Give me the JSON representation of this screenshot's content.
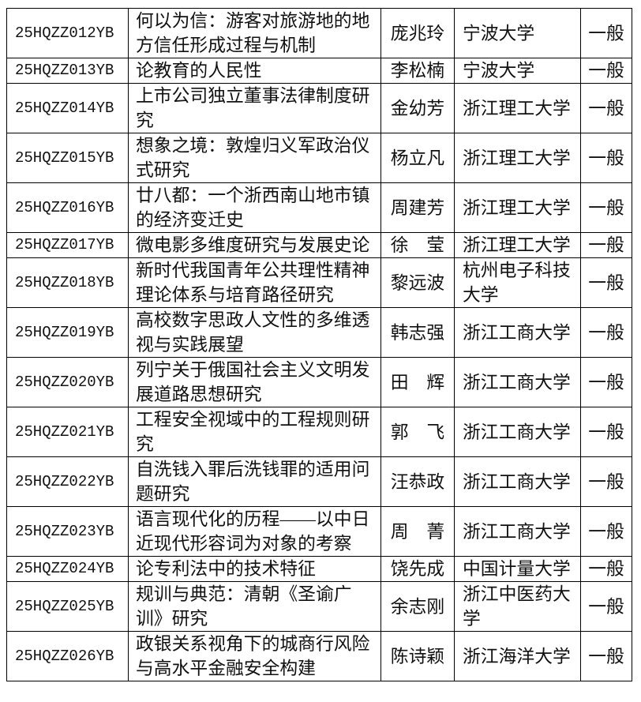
{
  "table": {
    "rows": [
      [
        "25HQZZ012YB",
        "何以为信：游客对旅游地的地方信任形成过程与机制",
        "庞兆玲",
        "宁波大学",
        "一般"
      ],
      [
        "25HQZZ013YB",
        "论教育的人民性",
        "李松楠",
        "宁波大学",
        "一般"
      ],
      [
        "25HQZZ014YB",
        "上市公司独立董事法律制度研究",
        "金幼芳",
        "浙江理工大学",
        "一般"
      ],
      [
        "25HQZZ015YB",
        "想象之境：敦煌归义军政治仪式研究",
        "杨立凡",
        "浙江理工大学",
        "一般"
      ],
      [
        "25HQZZ016YB",
        "廿八都：一个浙西南山地市镇的经济变迁史",
        "周建芳",
        "浙江理工大学",
        "一般"
      ],
      [
        "25HQZZ017YB",
        "微电影多维度研究与发展史论",
        "徐　莹",
        "浙江理工大学",
        "一般"
      ],
      [
        "25HQZZ018YB",
        "新时代我国青年公共理性精神理论体系与培育路径研究",
        "黎远波",
        "杭州电子科技大学",
        "一般"
      ],
      [
        "25HQZZ019YB",
        "高校数字思政人文性的多维透视与实践展望",
        "韩志强",
        "浙江工商大学",
        "一般"
      ],
      [
        "25HQZZ020YB",
        "列宁关于俄国社会主义文明发展道路思想研究",
        "田　辉",
        "浙江工商大学",
        "一般"
      ],
      [
        "25HQZZ021YB",
        "工程安全视域中的工程规则研究",
        "郭　飞",
        "浙江工商大学",
        "一般"
      ],
      [
        "25HQZZ022YB",
        "自洗钱入罪后洗钱罪的适用问题研究",
        "汪恭政",
        "浙江工商大学",
        "一般"
      ],
      [
        "25HQZZ023YB",
        "语言现代化的历程——以中日近现代形容词为对象的考察",
        "周　菁",
        "浙江工商大学",
        "一般"
      ],
      [
        "25HQZZ024YB",
        "论专利法中的技术特征",
        "饶先成",
        "中国计量大学",
        "一般"
      ],
      [
        "25HQZZ025YB",
        "规训与典范：清朝《圣谕广训》研究",
        "余志刚",
        "浙江中医药大学",
        "一般"
      ],
      [
        "25HQZZ026YB",
        "政银关系视角下的城商行风险与高水平金融安全构建",
        "陈诗颖",
        "浙江海洋大学",
        "一般"
      ]
    ]
  }
}
